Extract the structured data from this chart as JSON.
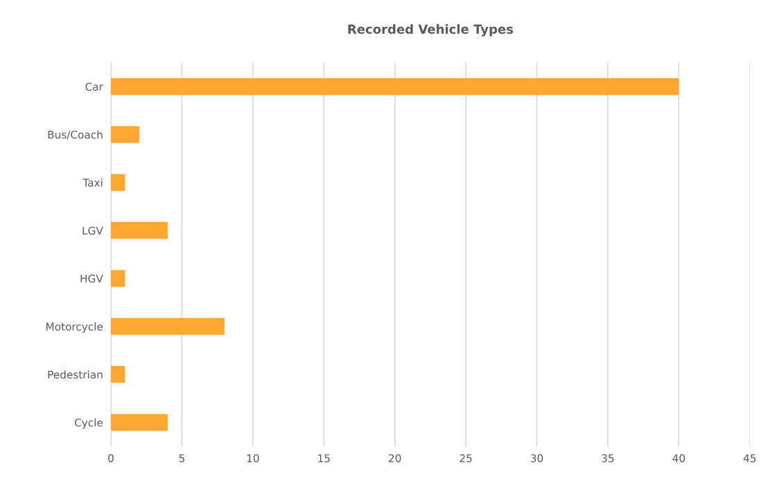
{
  "chart_data": {
    "type": "bar",
    "orientation": "horizontal",
    "title": "Recorded Vehicle Types",
    "categories": [
      "Car",
      "Bus/Coach",
      "Taxi",
      "LGV",
      "HGV",
      "Motorcycle",
      "Pedestrian",
      "Cycle"
    ],
    "values": [
      40,
      2,
      1,
      4,
      1,
      8,
      1,
      4
    ],
    "color": "#ffa733",
    "xlim": [
      0,
      45
    ],
    "xticks": [
      0,
      5,
      10,
      15,
      20,
      25,
      30,
      35,
      40,
      45
    ],
    "grid": "x",
    "legend": false
  }
}
